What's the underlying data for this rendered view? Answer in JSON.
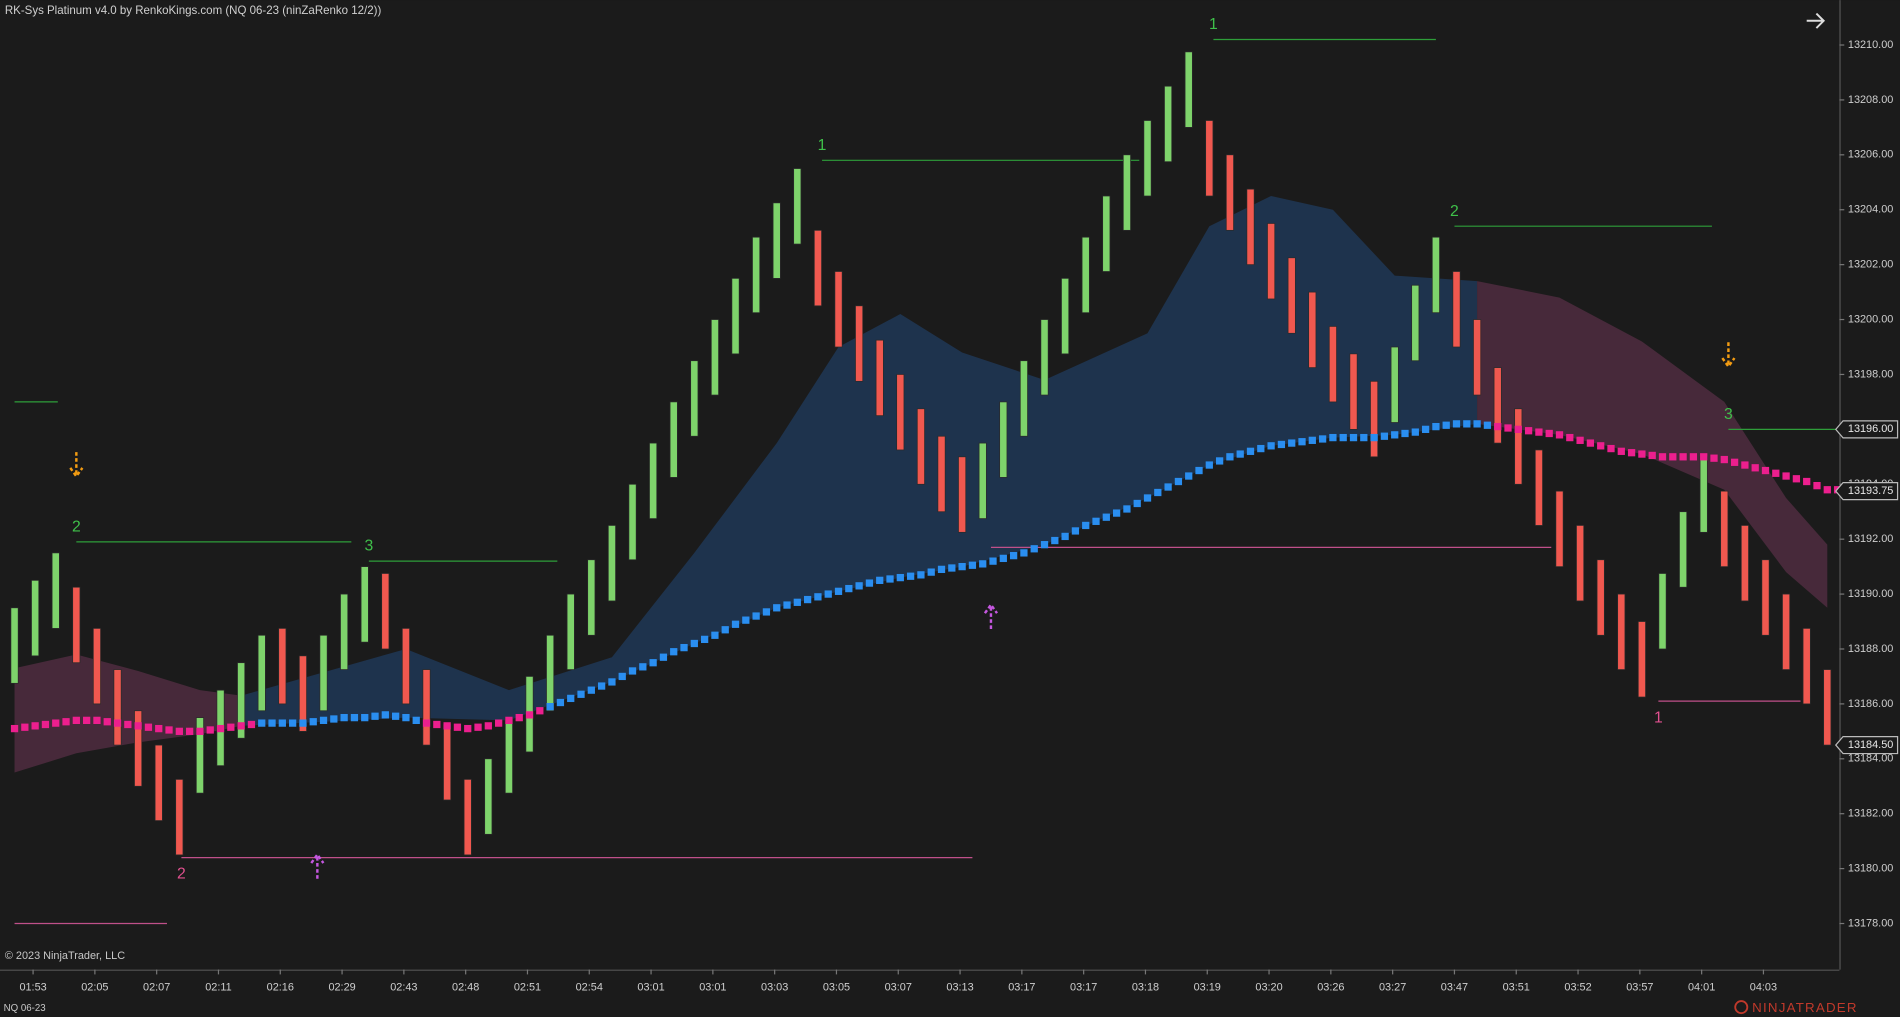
{
  "chart_data": {
    "type": "candlestick",
    "title": "RK-Sys Platinum v4.0 by RenkoKings.com (NQ 06-23 (ninZaRenko 12/2))",
    "copyright": "© 2023 NinjaTrader, LLC",
    "instrument": "NQ 06-23",
    "brand": "NINJATRADER",
    "up_color": "#7ed36b",
    "down_color": "#f0584f",
    "ylim": [
      13178,
      13210
    ],
    "yticks": [
      {
        "value": 13178,
        "label": "13178.00"
      },
      {
        "value": 13180,
        "label": "13180.00"
      },
      {
        "value": 13182,
        "label": "13182.00"
      },
      {
        "value": 13184,
        "label": "13184.00"
      },
      {
        "value": 13186,
        "label": "13186.00"
      },
      {
        "value": 13188,
        "label": "13188.00"
      },
      {
        "value": 13190,
        "label": "13190.00"
      },
      {
        "value": 13192,
        "label": "13192.00"
      },
      {
        "value": 13194,
        "label": "13194.00"
      },
      {
        "value": 13196,
        "label": "13196.00"
      },
      {
        "value": 13198,
        "label": "13198.00"
      },
      {
        "value": 13200,
        "label": "13200.00"
      },
      {
        "value": 13202,
        "label": "13202.00"
      },
      {
        "value": 13204,
        "label": "13204.00"
      },
      {
        "value": 13206,
        "label": "13206.00"
      },
      {
        "value": 13208,
        "label": "13208.00"
      },
      {
        "value": 13210,
        "label": "13210.00"
      }
    ],
    "xticks": [
      {
        "value": 0.9,
        "label": "01:53"
      },
      {
        "value": 3.9,
        "label": "02:05"
      },
      {
        "value": 6.9,
        "label": "02:07"
      },
      {
        "value": 9.9,
        "label": "02:11"
      },
      {
        "value": 12.9,
        "label": "02:16"
      },
      {
        "value": 15.9,
        "label": "02:29"
      },
      {
        "value": 18.9,
        "label": "02:43"
      },
      {
        "value": 21.9,
        "label": "02:48"
      },
      {
        "value": 24.9,
        "label": "02:51"
      },
      {
        "value": 27.9,
        "label": "02:54"
      },
      {
        "value": 30.9,
        "label": "03:01"
      },
      {
        "value": 33.9,
        "label": "03:01"
      },
      {
        "value": 36.9,
        "label": "03:03"
      },
      {
        "value": 39.9,
        "label": "03:05"
      },
      {
        "value": 42.9,
        "label": "03:07"
      },
      {
        "value": 45.9,
        "label": "03:13"
      },
      {
        "value": 48.9,
        "label": "03:17"
      },
      {
        "value": 51.9,
        "label": "03:17"
      },
      {
        "value": 54.9,
        "label": "03:18"
      },
      {
        "value": 57.9,
        "label": "03:19"
      },
      {
        "value": 60.9,
        "label": "03:20"
      },
      {
        "value": 63.9,
        "label": "03:26"
      },
      {
        "value": 66.9,
        "label": "03:27"
      },
      {
        "value": 69.9,
        "label": "03:47"
      },
      {
        "value": 72.9,
        "label": "03:51"
      },
      {
        "value": 75.9,
        "label": "03:52"
      },
      {
        "value": 78.9,
        "label": "03:57"
      },
      {
        "value": 81.9,
        "label": "04:01"
      },
      {
        "value": 84.9,
        "label": "04:03"
      }
    ],
    "bars": {
      "open": [
        13186.75,
        13187.75,
        13188.75,
        13190.25,
        13188.75,
        13187.25,
        13185.75,
        13184.5,
        13183.25,
        13182.75,
        13183.75,
        13184.75,
        13185.75,
        13188.75,
        13187.75,
        13185.75,
        13187.25,
        13188.25,
        13190.75,
        13188.75,
        13187.25,
        13185.25,
        13183.25,
        13181.25,
        13182.75,
        13184.25,
        13185.75,
        13187.25,
        13188.5,
        13189.75,
        13191.25,
        13192.75,
        13194.25,
        13195.75,
        13197.25,
        13198.75,
        13200.25,
        13201.5,
        13202.75,
        13203.25,
        13201.75,
        13200.5,
        13199.25,
        13198,
        13196.75,
        13195.75,
        13195,
        13192.75,
        13194.25,
        13195.75,
        13197.25,
        13198.75,
        13200.25,
        13201.75,
        13203.25,
        13204.5,
        13205.75,
        13207,
        13207.25,
        13206,
        13204.75,
        13203.5,
        13202.25,
        13201,
        13199.75,
        13198.75,
        13197.75,
        13196.25,
        13198.5,
        13200.25,
        13201.75,
        13200,
        13198.25,
        13196.75,
        13195.25,
        13193.75,
        13192.5,
        13191.25,
        13190,
        13189,
        13188,
        13190.25,
        13192.25,
        13193.75,
        13192.5,
        13191.25,
        13190,
        13188.75,
        13187.25
      ],
      "close": [
        13189.5,
        13190.5,
        13191.5,
        13187.5,
        13186,
        13184.5,
        13183,
        13181.75,
        13180.5,
        13185.5,
        13186.5,
        13187.5,
        13188.5,
        13186,
        13185,
        13188.5,
        13190,
        13191,
        13188,
        13186,
        13184.5,
        13182.5,
        13180.5,
        13184,
        13185.5,
        13187,
        13188.5,
        13190,
        13191.25,
        13192.5,
        13194,
        13195.5,
        13197,
        13198.5,
        13200,
        13201.5,
        13203,
        13204.25,
        13205.5,
        13200.5,
        13199,
        13197.75,
        13196.5,
        13195.25,
        13194,
        13193,
        13192.25,
        13195.5,
        13197,
        13198.5,
        13200,
        13201.5,
        13203,
        13204.5,
        13206,
        13207.25,
        13208.5,
        13209.75,
        13204.5,
        13203.25,
        13202,
        13200.75,
        13199.5,
        13198.25,
        13197,
        13196,
        13195,
        13199,
        13201.25,
        13203,
        13199,
        13197.25,
        13195.5,
        13194,
        13192.5,
        13191,
        13189.75,
        13188.5,
        13187.25,
        13186.25,
        13190.75,
        13193,
        13195,
        13191,
        13189.75,
        13188.5,
        13187.25,
        13186,
        13184.5
      ]
    },
    "ma": {
      "values": [
        13185.1,
        13185.2,
        13185.3,
        13185.4,
        13185.4,
        13185.3,
        13185.2,
        13185.1,
        13185,
        13185,
        13185.1,
        13185.2,
        13185.3,
        13185.3,
        13185.3,
        13185.4,
        13185.5,
        13185.5,
        13185.6,
        13185.5,
        13185.3,
        13185.2,
        13185.1,
        13185.2,
        13185.4,
        13185.6,
        13185.9,
        13186.2,
        13186.5,
        13186.8,
        13187.2,
        13187.5,
        13187.9,
        13188.2,
        13188.5,
        13188.9,
        13189.2,
        13189.5,
        13189.7,
        13189.9,
        13190.1,
        13190.3,
        13190.5,
        13190.6,
        13190.7,
        13190.9,
        13191,
        13191.1,
        13191.3,
        13191.5,
        13191.8,
        13192.1,
        13192.5,
        13192.8,
        13193.1,
        13193.5,
        13193.9,
        13194.3,
        13194.7,
        13195,
        13195.2,
        13195.4,
        13195.5,
        13195.6,
        13195.7,
        13195.7,
        13195.7,
        13195.8,
        13195.9,
        13196.1,
        13196.2,
        13196.2,
        13196.1,
        13196,
        13195.9,
        13195.8,
        13195.6,
        13195.4,
        13195.2,
        13195.1,
        13195,
        13195,
        13195,
        13194.9,
        13194.7,
        13194.5,
        13194.3,
        13194.1,
        13193.8
      ],
      "colors": [
        "#ec1f8e",
        "#ec1f8e",
        "#ec1f8e",
        "#ec1f8e",
        "#ec1f8e",
        "#ec1f8e",
        "#ec1f8e",
        "#ec1f8e",
        "#ec1f8e",
        "#ec1f8e",
        "#ec1f8e",
        "#ec1f8e",
        "#2a8ef0",
        "#2a8ef0",
        "#2a8ef0",
        "#2a8ef0",
        "#2a8ef0",
        "#2a8ef0",
        "#2a8ef0",
        "#2a8ef0",
        "#ec1f8e",
        "#ec1f8e",
        "#ec1f8e",
        "#ec1f8e",
        "#ec1f8e",
        "#ec1f8e",
        "#2a8ef0",
        "#2a8ef0",
        "#2a8ef0",
        "#2a8ef0",
        "#2a8ef0",
        "#2a8ef0",
        "#2a8ef0",
        "#2a8ef0",
        "#2a8ef0",
        "#2a8ef0",
        "#2a8ef0",
        "#2a8ef0",
        "#2a8ef0",
        "#2a8ef0",
        "#2a8ef0",
        "#2a8ef0",
        "#2a8ef0",
        "#2a8ef0",
        "#2a8ef0",
        "#2a8ef0",
        "#2a8ef0",
        "#2a8ef0",
        "#2a8ef0",
        "#2a8ef0",
        "#2a8ef0",
        "#2a8ef0",
        "#2a8ef0",
        "#2a8ef0",
        "#2a8ef0",
        "#2a8ef0",
        "#2a8ef0",
        "#2a8ef0",
        "#2a8ef0",
        "#2a8ef0",
        "#2a8ef0",
        "#2a8ef0",
        "#2a8ef0",
        "#2a8ef0",
        "#2a8ef0",
        "#2a8ef0",
        "#2a8ef0",
        "#2a8ef0",
        "#2a8ef0",
        "#2a8ef0",
        "#2a8ef0",
        "#2a8ef0",
        "#ec1f8e",
        "#ec1f8e",
        "#ec1f8e",
        "#ec1f8e",
        "#ec1f8e",
        "#ec1f8e",
        "#ec1f8e",
        "#ec1f8e",
        "#ec1f8e",
        "#ec1f8e",
        "#ec1f8e",
        "#ec1f8e",
        "#ec1f8e",
        "#ec1f8e",
        "#ec1f8e",
        "#ec1f8e",
        "#ec1f8e"
      ]
    },
    "clouds": [
      {
        "color": "#4a2a3c",
        "x": [
          0,
          3,
          6,
          9,
          11
        ],
        "upper": [
          13187.3,
          13187.8,
          13187.2,
          13186.5,
          13186.3
        ],
        "lower": [
          13183.5,
          13184.2,
          13184.6,
          13184.9,
          13185.2
        ]
      },
      {
        "color": "#1f3550",
        "x": [
          11,
          19,
          24,
          29,
          33,
          37,
          40,
          43,
          46,
          50,
          55,
          58,
          61,
          64,
          67,
          71
        ],
        "upper": [
          13186.3,
          13188,
          13186.5,
          13187.7,
          13191.5,
          13195.5,
          13199,
          13200.2,
          13198.8,
          13197.8,
          13199.5,
          13203.4,
          13204.5,
          13204,
          13201.6,
          13201.4
        ],
        "lower": [
          13185.2,
          13185.5,
          13185.4,
          13186.8,
          13188.2,
          13189.5,
          13190.1,
          13190.6,
          13191,
          13191.8,
          13193.5,
          13194.7,
          13195.4,
          13195.7,
          13195.8,
          13196.2
        ]
      },
      {
        "color": "#4a2a3c",
        "x": [
          71,
          75,
          79,
          83,
          86,
          88
        ],
        "upper": [
          13201.4,
          13200.8,
          13199.2,
          13197,
          13193.5,
          13191.8
        ],
        "lower": [
          13196.2,
          13195.8,
          13195.1,
          13193.8,
          13190.8,
          13189.5
        ]
      }
    ],
    "levels": [
      {
        "color": "#2e9e3a",
        "x": [
          3,
          16.35
        ],
        "y": 13191.9,
        "label": "2"
      },
      {
        "color": "#2e9e3a",
        "x": [
          17.2,
          26.35
        ],
        "y": 13191.2,
        "label": "3"
      },
      {
        "color": "#2e9e3a",
        "x": [
          39.2,
          54.6
        ],
        "y": 13205.8,
        "label": "1"
      },
      {
        "color": "#2e9e3a",
        "x": [
          58.2,
          69
        ],
        "y": 13210.2,
        "label": "1"
      },
      {
        "color": "#2e9e3a",
        "x": [
          69.9,
          82.4
        ],
        "y": 13203.4,
        "label": "2"
      },
      {
        "color": "#2e9e3a",
        "x": [
          83.2,
          88.5
        ],
        "y": 13196,
        "label": "3"
      },
      {
        "color": "#2e9e3a",
        "x": [
          0,
          2.1
        ],
        "y": 13197
      },
      {
        "color": "#c0508a",
        "x": [
          8.1,
          46.5
        ],
        "y": 13180.4,
        "label": "2"
      },
      {
        "color": "#c0508a",
        "x": [
          47.4,
          74.6
        ],
        "y": 13191.7
      },
      {
        "color": "#c0508a",
        "x": [
          79.8,
          86.7
        ],
        "y": 13186.1,
        "label": "1"
      },
      {
        "color": "#c0508a",
        "x": [
          0,
          7.4
        ],
        "y": 13178
      }
    ],
    "signals_down": [
      {
        "x": 3,
        "y": 13194.2
      },
      {
        "x": 83.2,
        "y": 13198.2
      }
    ],
    "signals_up": [
      {
        "x": 14.7,
        "y": 13180.6
      },
      {
        "x": 47.4,
        "y": 13189.7
      }
    ],
    "price_markers": [
      {
        "value": 13196,
        "label": "13196.00"
      },
      {
        "value": 13193.75,
        "label": "13193.75"
      },
      {
        "value": 13184.5,
        "label": "13184.50"
      }
    ]
  }
}
